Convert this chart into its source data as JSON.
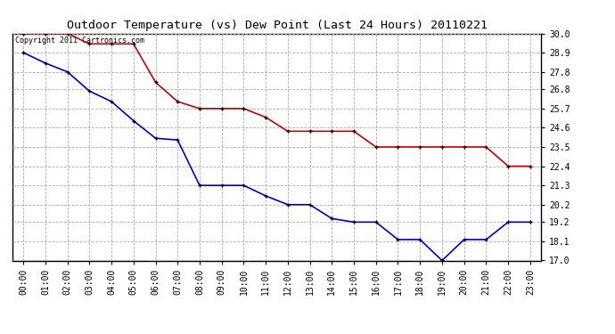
{
  "title": "Outdoor Temperature (vs) Dew Point (Last 24 Hours) 20110221",
  "copyright_text": "Copyright 2011 Cartronics.com",
  "x_labels": [
    "00:00",
    "01:00",
    "02:00",
    "03:00",
    "04:00",
    "05:00",
    "06:00",
    "07:00",
    "08:00",
    "09:00",
    "10:00",
    "11:00",
    "12:00",
    "13:00",
    "14:00",
    "15:00",
    "16:00",
    "17:00",
    "18:00",
    "19:00",
    "20:00",
    "21:00",
    "22:00",
    "23:00"
  ],
  "red_data": [
    30.0,
    30.0,
    30.0,
    29.4,
    29.4,
    29.4,
    27.2,
    26.1,
    25.7,
    25.7,
    25.7,
    25.2,
    24.4,
    24.4,
    24.4,
    24.4,
    23.5,
    23.5,
    23.5,
    23.5,
    23.5,
    23.5,
    22.4,
    22.4
  ],
  "blue_data": [
    28.9,
    28.3,
    27.8,
    26.7,
    26.1,
    25.0,
    24.0,
    23.9,
    21.3,
    21.3,
    21.3,
    20.7,
    20.2,
    20.2,
    19.4,
    19.2,
    19.2,
    18.2,
    18.2,
    17.0,
    18.2,
    18.2,
    19.2,
    19.2
  ],
  "red_color": "#cc0000",
  "blue_color": "#0000cc",
  "marker_color": "#000000",
  "background_color": "#ffffff",
  "grid_color": "#aaaaaa",
  "ylim_min": 17.0,
  "ylim_max": 30.0,
  "yticks": [
    17.0,
    18.1,
    19.2,
    20.2,
    21.3,
    22.4,
    23.5,
    24.6,
    25.7,
    26.8,
    27.8,
    28.9,
    30.0
  ],
  "title_fontsize": 9.5,
  "tick_fontsize": 7,
  "copyright_fontsize": 6,
  "line_width": 1.2,
  "marker_size": 3.5,
  "fig_width": 6.9,
  "fig_height": 3.75,
  "dpi": 100
}
